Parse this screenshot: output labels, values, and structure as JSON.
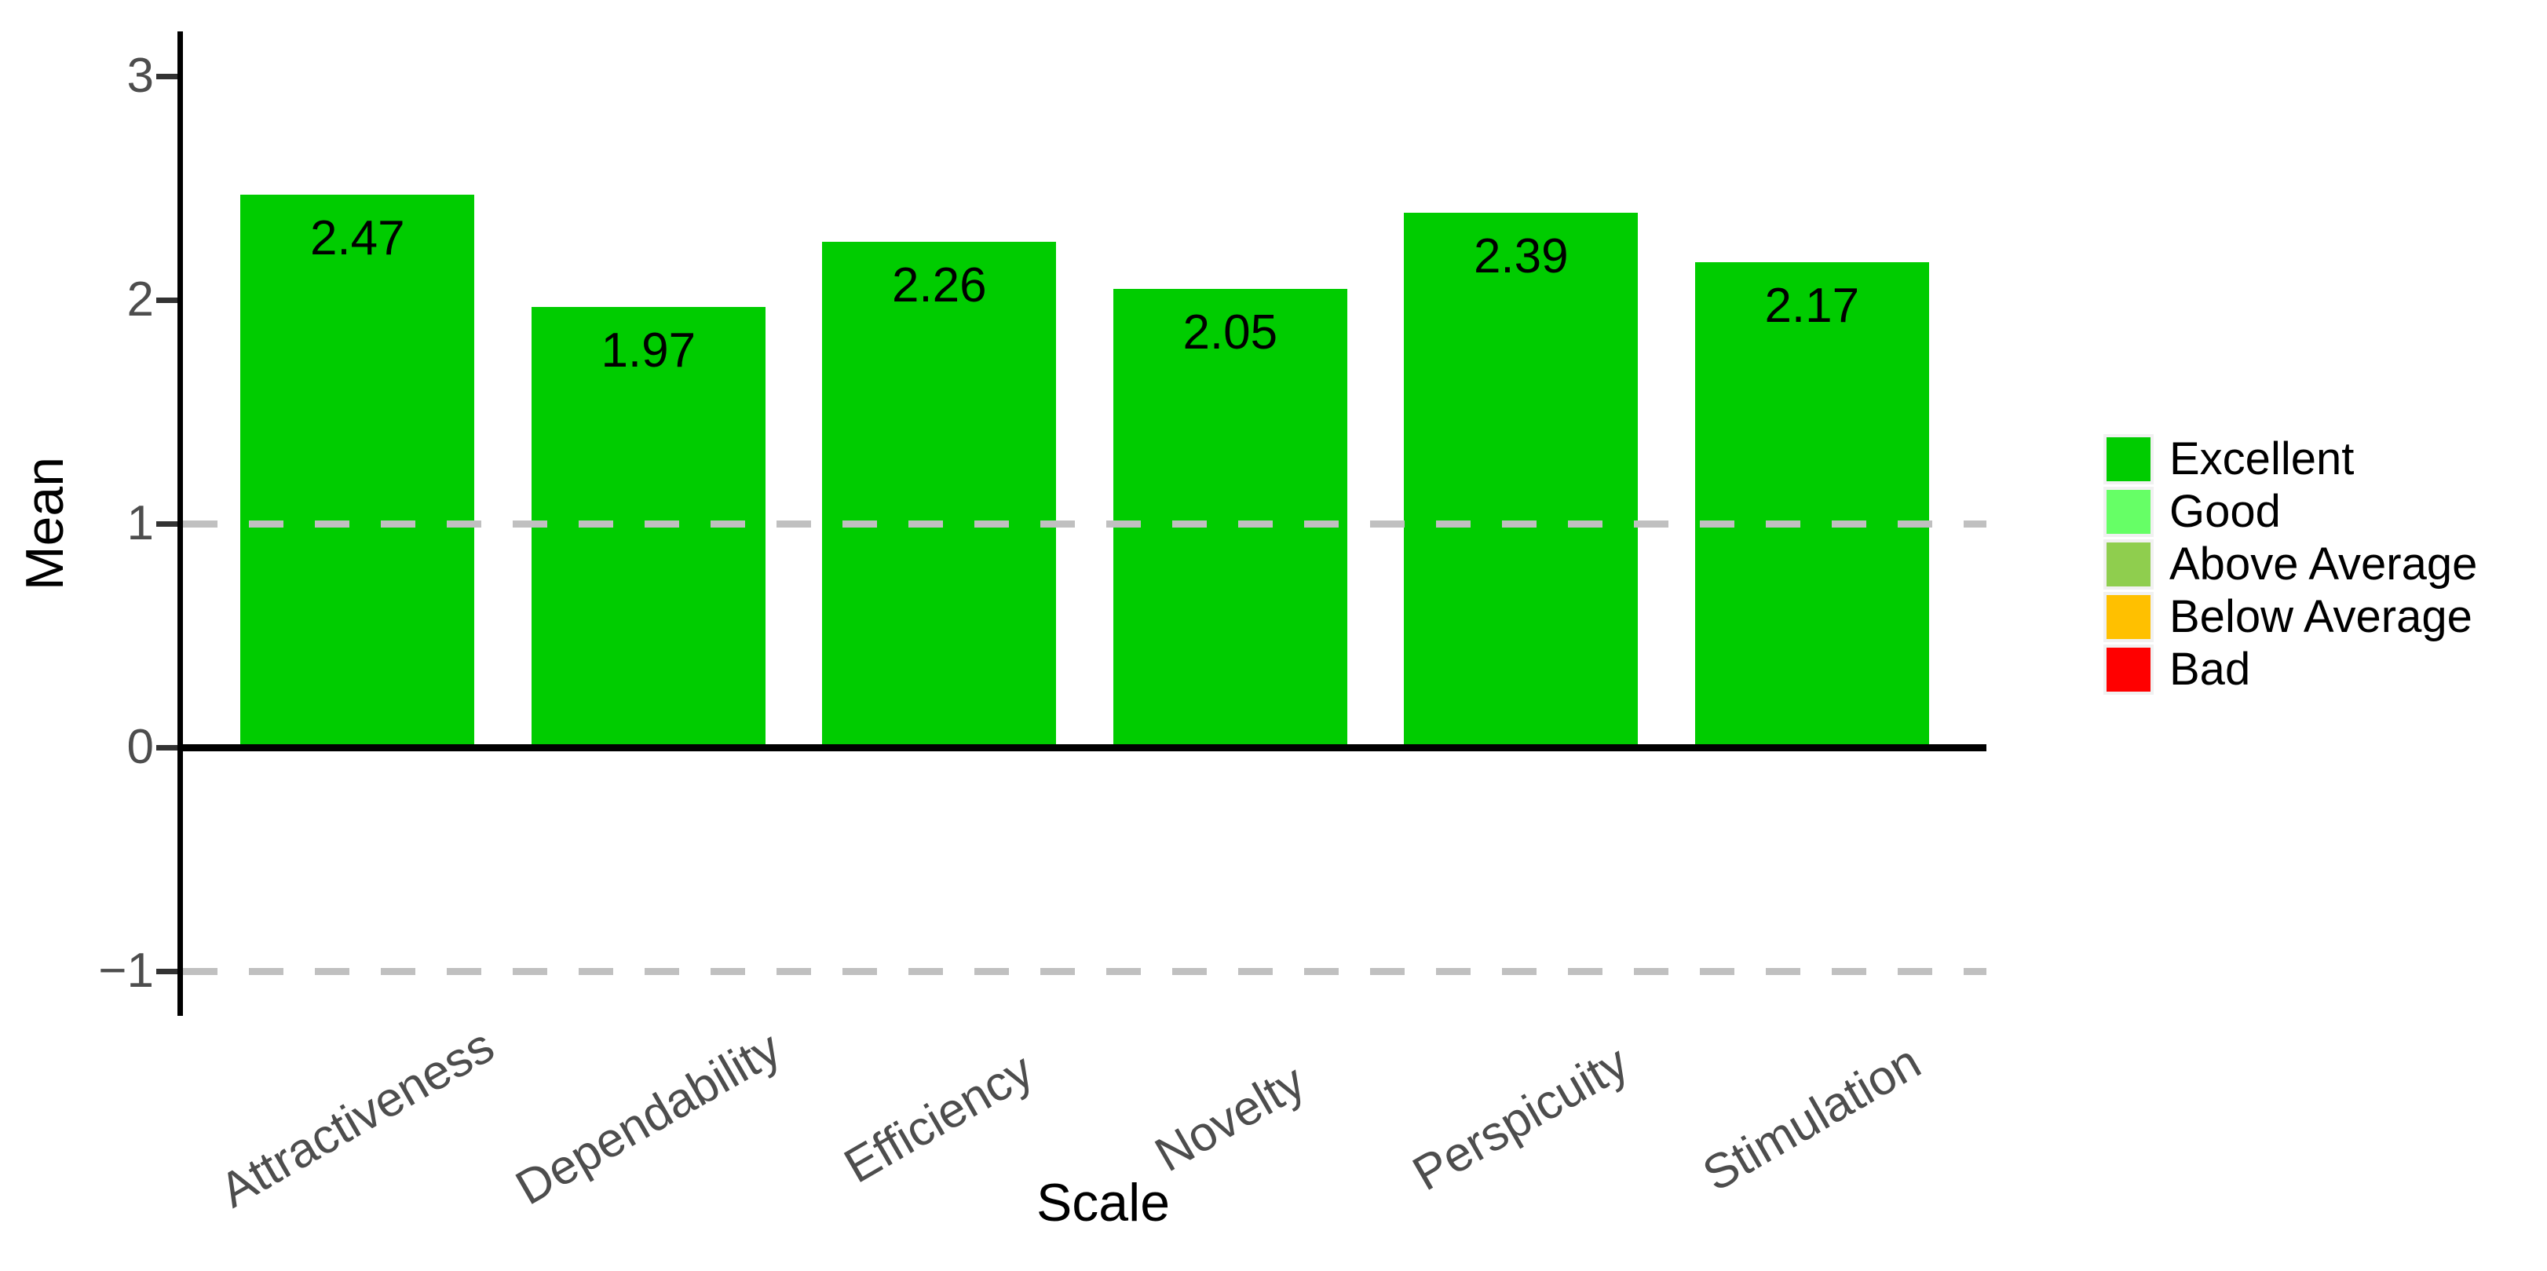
{
  "chart_data": {
    "type": "bar",
    "title": "",
    "xlabel": "Scale",
    "ylabel": "Mean",
    "categories": [
      "Attractiveness",
      "Dependability",
      "Efficiency",
      "Novelty",
      "Perspicuity",
      "Stimulation"
    ],
    "values": [
      2.47,
      1.97,
      2.26,
      2.05,
      2.39,
      2.17
    ],
    "value_labels": [
      "2.47",
      "1.97",
      "2.26",
      "2.05",
      "2.39",
      "2.17"
    ],
    "bar_rating": "Excellent",
    "bar_color": "#00CC00",
    "ylim": [
      -1.2,
      3.2
    ],
    "yticks": [
      3,
      2,
      1,
      0,
      -1
    ],
    "ytick_labels": [
      "3",
      "2",
      "1",
      "0",
      "−1"
    ],
    "reference_lines": [
      {
        "y": 1,
        "style": "dashed"
      },
      {
        "y": -1,
        "style": "dashed"
      },
      {
        "y": 0,
        "style": "solid"
      }
    ],
    "grid": false,
    "legend_position": "right",
    "legend": [
      {
        "label": "Excellent",
        "color": "#00CC00"
      },
      {
        "label": "Good",
        "color": "#66FF66"
      },
      {
        "label": "Above Average",
        "color": "#8FCE4E"
      },
      {
        "label": "Below Average",
        "color": "#FFC000"
      },
      {
        "label": "Bad",
        "color": "#FF0000"
      }
    ]
  },
  "colors": {
    "background": "#FFFFFF",
    "axis_line": "#000000",
    "tick_mark": "#333333",
    "tick_label": "#4D4D4D",
    "category_label": "#4D4D4D",
    "dashed_line": "#C0C0C0",
    "zero_line": "#000000",
    "legend_key_bg": "#F1F1F1",
    "value_label": "#000000"
  }
}
